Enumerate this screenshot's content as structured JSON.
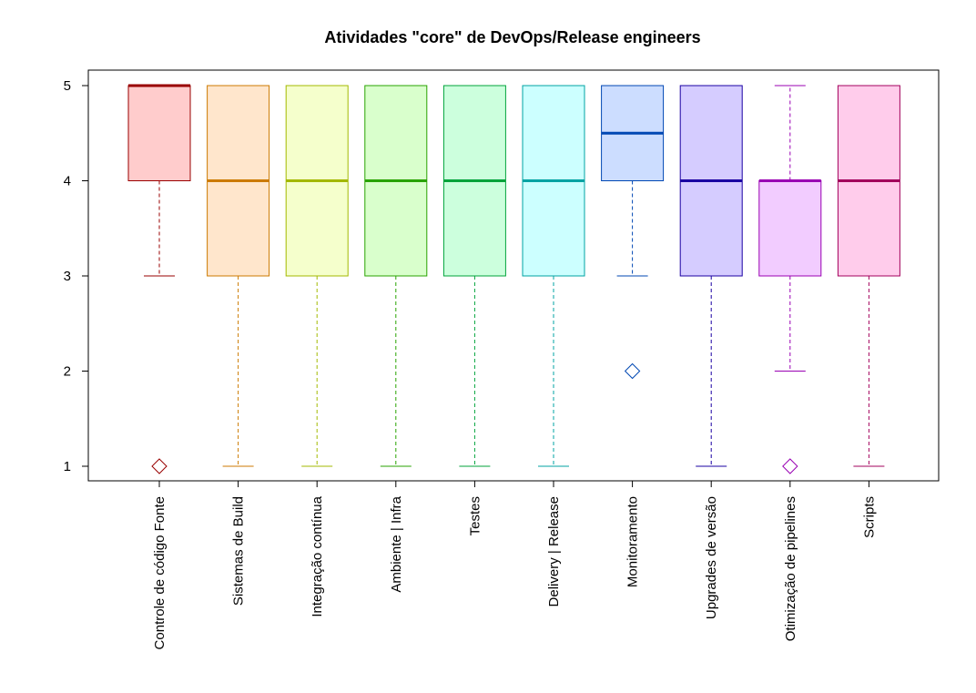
{
  "chart_data": {
    "type": "boxplot",
    "title": "Atividades \"core\" de DevOps/Release engineers",
    "xlabel": "",
    "ylabel": "",
    "ylim": [
      0.85,
      5.15
    ],
    "yticks": [
      1,
      2,
      3,
      4,
      5
    ],
    "grid": false,
    "legend": "none",
    "categories": [
      "Controle de código Fonte",
      "Sistemas de Build",
      "Integração contínua",
      "Ambiente | Infra",
      "Testes",
      "Delivery | Release",
      "Monitoramento",
      "Upgrades de versão",
      "Otimização de pipelines",
      "Scripts"
    ],
    "boxes": [
      {
        "whisker_low": 3,
        "q1": 4,
        "median": 5,
        "q3": 5,
        "whisker_high": 5,
        "outliers": [
          1
        ],
        "fill": "#FFCCCC",
        "stroke": "#990000"
      },
      {
        "whisker_low": 1,
        "q1": 3,
        "median": 4,
        "q3": 5,
        "whisker_high": 5,
        "outliers": [],
        "fill": "#FFE6CC",
        "stroke": "#CC7A00"
      },
      {
        "whisker_low": 1,
        "q1": 3,
        "median": 4,
        "q3": 5,
        "whisker_high": 5,
        "outliers": [],
        "fill": "#F5FFCC",
        "stroke": "#A3B800"
      },
      {
        "whisker_low": 1,
        "q1": 3,
        "median": 4,
        "q3": 5,
        "whisker_high": 5,
        "outliers": [],
        "fill": "#D9FFCC",
        "stroke": "#29A300"
      },
      {
        "whisker_low": 1,
        "q1": 3,
        "median": 4,
        "q3": 5,
        "whisker_high": 5,
        "outliers": [],
        "fill": "#CCFFDD",
        "stroke": "#00A33A"
      },
      {
        "whisker_low": 1,
        "q1": 3,
        "median": 4,
        "q3": 5,
        "whisker_high": 5,
        "outliers": [],
        "fill": "#CCFFFF",
        "stroke": "#00A3A3"
      },
      {
        "whisker_low": 3,
        "q1": 4,
        "median": 4.5,
        "q3": 5,
        "whisker_high": 5,
        "outliers": [
          2
        ],
        "fill": "#CCDDFF",
        "stroke": "#0047B3"
      },
      {
        "whisker_low": 1,
        "q1": 3,
        "median": 4,
        "q3": 5,
        "whisker_high": 5,
        "outliers": [],
        "fill": "#D5CCFF",
        "stroke": "#1A00A3"
      },
      {
        "whisker_low": 2,
        "q1": 3,
        "median": 4,
        "q3": 4,
        "whisker_high": 5,
        "outliers": [
          1
        ],
        "fill": "#F2CCFF",
        "stroke": "#9900B3"
      },
      {
        "whisker_low": 1,
        "q1": 3,
        "median": 4,
        "q3": 5,
        "whisker_high": 5,
        "outliers": [],
        "fill": "#FFCCEB",
        "stroke": "#A3005C"
      }
    ]
  }
}
